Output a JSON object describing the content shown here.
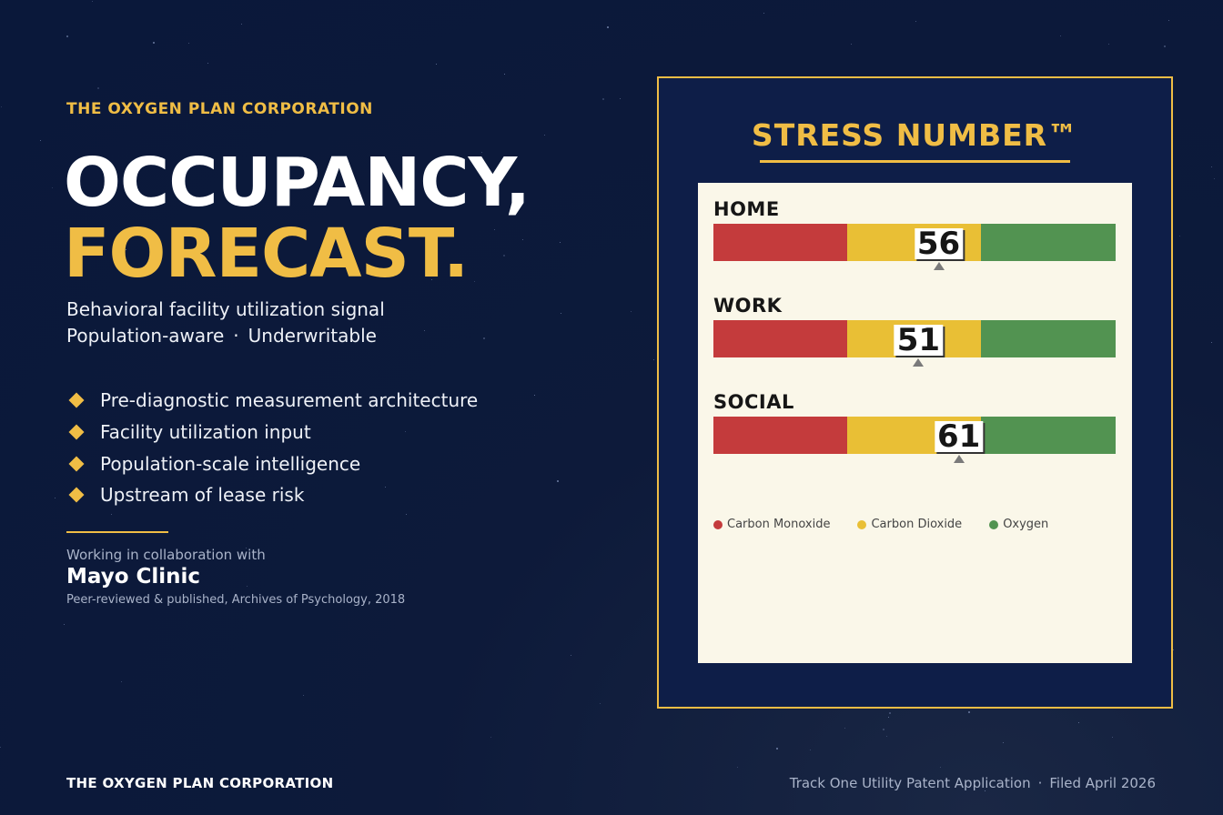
{
  "brand": "THE OXYGEN PLAN CORPORATION",
  "headline": {
    "line1": "OCCUPANCY,",
    "line2": "FORECAST."
  },
  "subtitle": {
    "line1": "Behavioral facility utilization signal",
    "line2_a": "Population-aware",
    "line2_sep": "·",
    "line2_b": "Underwritable"
  },
  "bullets": [
    "Pre-diagnostic measurement architecture",
    "Facility utilization input",
    "Population-scale intelligence",
    "Upstream of lease risk"
  ],
  "collaboration": {
    "intro": "Working in collaboration with",
    "partner": "Mayo Clinic",
    "citation": "Peer-reviewed & published, Archives of Psychology, 2018"
  },
  "footer": {
    "left": "THE OXYGEN PLAN CORPORATION",
    "right_a": "Track One Utility Patent Application",
    "right_sep": "·",
    "right_b": "Filed April 2026"
  },
  "panel": {
    "title": "STRESS NUMBER™",
    "scale_min": 0,
    "scale_max": 100,
    "rows": [
      {
        "label": "HOME",
        "score": "56",
        "value": 56
      },
      {
        "label": "WORK",
        "score": "51",
        "value": 51
      },
      {
        "label": "SOCIAL",
        "score": "61",
        "value": 61
      }
    ],
    "legend": [
      {
        "label": "Carbon Monoxide",
        "color": "#c43b3c"
      },
      {
        "label": "Carbon Dioxide",
        "color": "#e9bf35"
      },
      {
        "label": "Oxygen",
        "color": "#529351"
      }
    ]
  },
  "colors": {
    "accent": "#f0bd45",
    "background": "#0a183a",
    "red": "#c43b3c",
    "yellow": "#e9bf35",
    "green": "#529351"
  }
}
